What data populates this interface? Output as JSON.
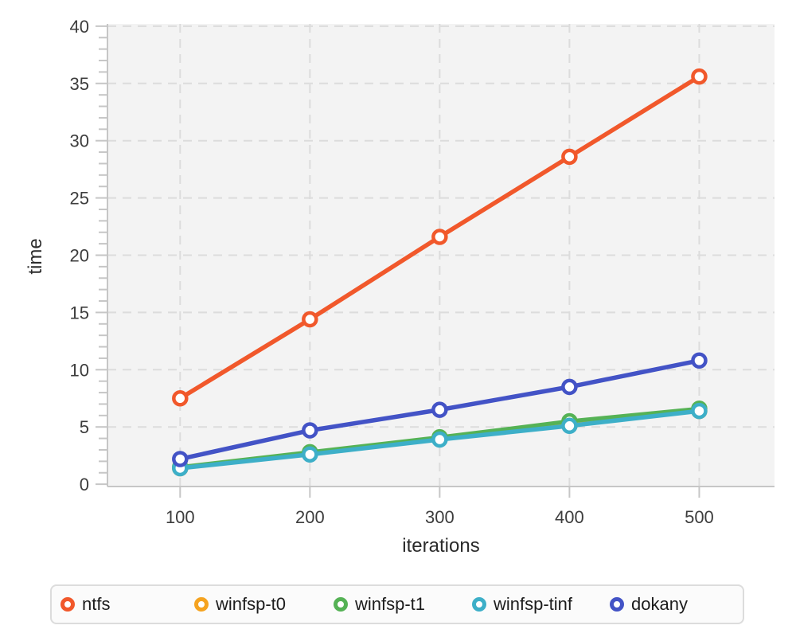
{
  "chart_data": {
    "type": "line",
    "title": "",
    "xlabel": "iterations",
    "ylabel": "time",
    "x": [
      100,
      200,
      300,
      400,
      500
    ],
    "series": [
      {
        "name": "ntfs",
        "color": "#f1582b",
        "values": [
          7.5,
          14.4,
          21.6,
          28.6,
          35.6
        ]
      },
      {
        "name": "winfsp-t0",
        "color": "#f5a320",
        "values": [
          1.4,
          2.7,
          4.0,
          5.4,
          6.4
        ]
      },
      {
        "name": "winfsp-t1",
        "color": "#55b255",
        "values": [
          1.5,
          2.8,
          4.1,
          5.5,
          6.6
        ]
      },
      {
        "name": "winfsp-tinf",
        "color": "#3dafc8",
        "values": [
          1.4,
          2.6,
          3.9,
          5.1,
          6.4
        ]
      },
      {
        "name": "dokany",
        "color": "#4353c6",
        "values": [
          2.2,
          4.7,
          6.5,
          8.5,
          10.8
        ]
      }
    ],
    "xlim": [
      44,
      558
    ],
    "ylim": [
      -0.2,
      40.2
    ],
    "xticks": [
      100,
      200,
      300,
      400,
      500
    ],
    "yticks_major": [
      0,
      5,
      10,
      15,
      20,
      25,
      30,
      35,
      40
    ],
    "ytick_minor_step": 1,
    "grid": true,
    "grid_style": "dashed",
    "legend_position": "bottom",
    "colors": {
      "plot_background": "#f3f3f3",
      "gridline": "#dcdcdc",
      "axis_line": "#c6c6c6",
      "tick_mark": "#c6c6c6",
      "tick_label": "#3d3d3d",
      "axis_title": "#2b2b2b",
      "legend_border": "#dcdcdc",
      "legend_background": "#fbfbfb",
      "legend_text": "#1c1c1c",
      "marker_fill": "#ffffff"
    }
  }
}
